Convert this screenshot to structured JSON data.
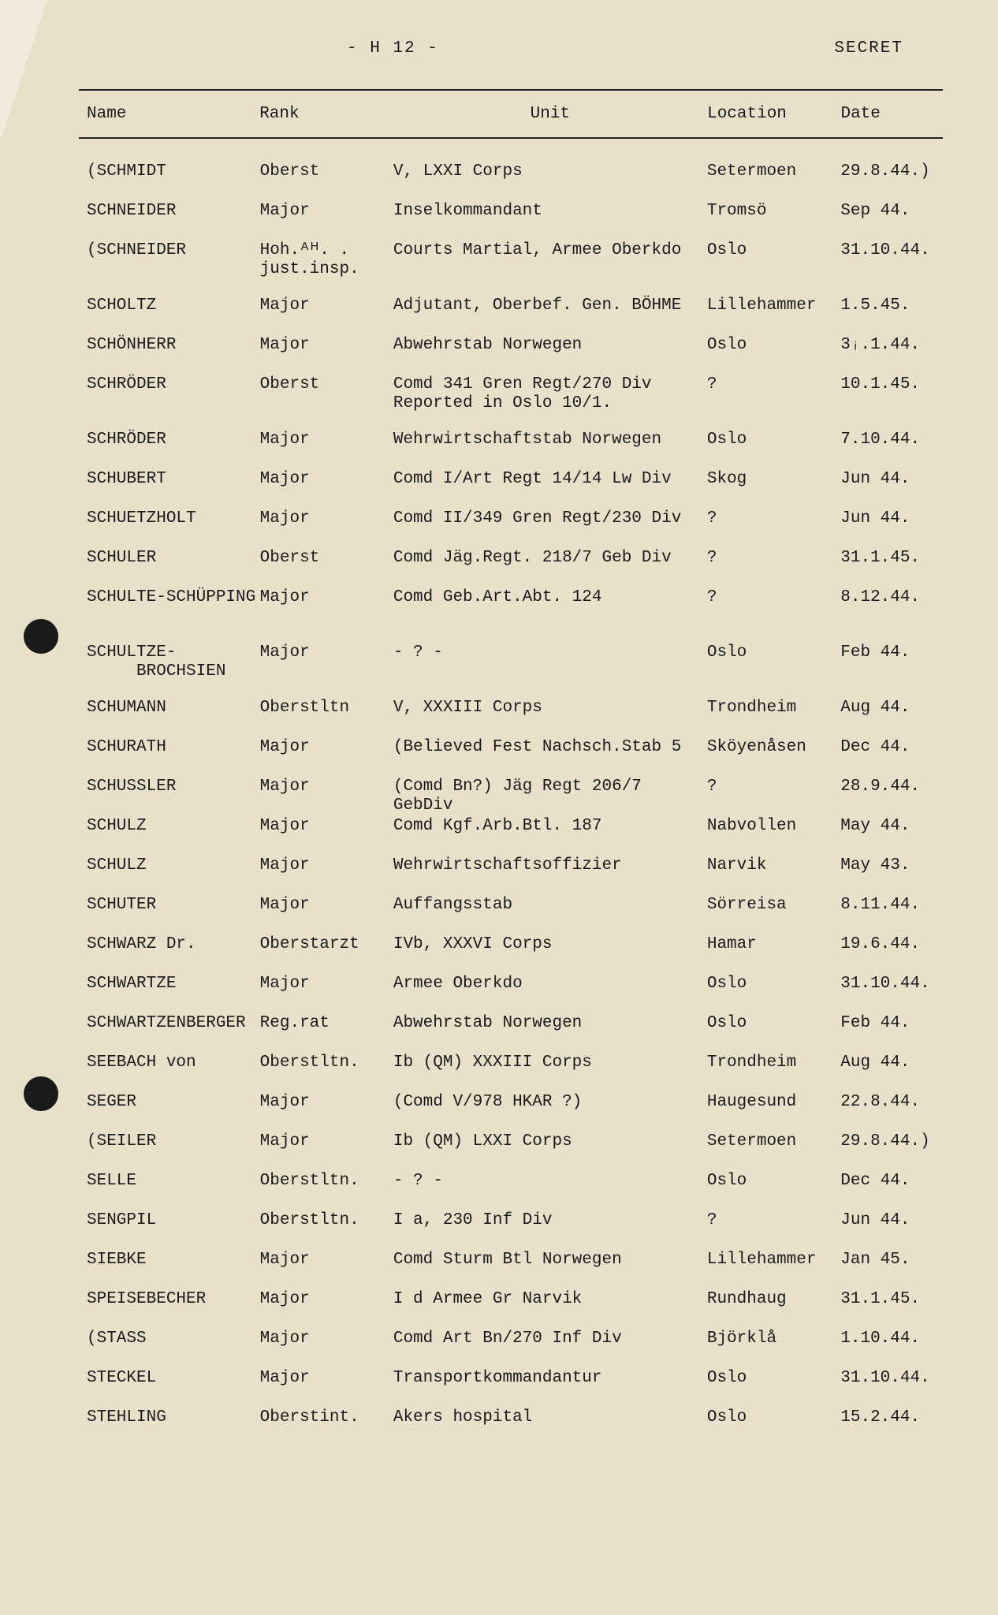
{
  "header": {
    "page_marker": "- H 12 -",
    "classification": "SECRET"
  },
  "columns": {
    "name": "Name",
    "rank": "Rank",
    "unit": "Unit",
    "location": "Location",
    "date": "Date"
  },
  "rows": [
    {
      "name": "(SCHMIDT",
      "rank": "Oberst",
      "unit": "V, LXXI Corps",
      "loc": "Setermoen",
      "date": "29.8.44.)"
    },
    {
      "name": "SCHNEIDER",
      "rank": "Major",
      "unit": "Inselkommandant",
      "loc": "Tromsö",
      "date": "Sep 44."
    },
    {
      "name": "(SCHNEIDER",
      "rank": "Hoh.ᴬᴴ. .",
      "rank2": "just.insp.",
      "unit": "Courts Martial, Armee Oberkdo",
      "loc": "Oslo",
      "date": "31.10.44."
    },
    {
      "name": "SCHOLTZ",
      "rank": "Major",
      "unit": "Adjutant, Oberbef. Gen. BÖHME",
      "loc": "Lillehammer",
      "date": "1.5.45."
    },
    {
      "name": "SCHÖNHERR",
      "rank": "Major",
      "unit": "Abwehrstab Norwegen",
      "loc": "Oslo",
      "date": "3ᵢ.1.44."
    },
    {
      "name": "SCHRÖDER",
      "rank": "Oberst",
      "unit": "Comd 341 Gren Regt/270 Div",
      "unit2": "Reported in Oslo 10/1.",
      "loc": "?",
      "date": "10.1.45."
    },
    {
      "name": "SCHRÖDER",
      "rank": "Major",
      "unit": "Wehrwirtschaftstab Norwegen",
      "loc": "Oslo",
      "date": "7.10.44."
    },
    {
      "name": "SCHUBERT",
      "rank": "Major",
      "unit": "Comd I/Art Regt 14/14 Lw Div",
      "loc": "Skog",
      "date": "Jun 44."
    },
    {
      "name": "SCHUETZHOLT",
      "rank": "Major",
      "unit": "Comd II/349 Gren Regt/230 Div",
      "loc": "?",
      "date": "Jun 44."
    },
    {
      "name": "SCHULER",
      "rank": "Oberst",
      "unit": "Comd Jäg.Regt. 218/7 Geb Div",
      "loc": "?",
      "date": "31.1.45."
    },
    {
      "name": "SCHULTE-SCHÜPPING",
      "name2": "",
      "rank": "",
      "rank_row2": "Major",
      "unit": "",
      "unit_row2": "Comd Geb.Art.Abt. 124",
      "loc": "",
      "loc_row2": "?",
      "date": "",
      "date_row2": "8.12.44.",
      "twoRow": true
    },
    {
      "name": "SCHULTZE-",
      "name2": "     BROCHSIEN",
      "rank": "Major",
      "unit": "- ? -",
      "loc": "Oslo",
      "date": "Feb 44."
    },
    {
      "name": "SCHUMANN",
      "rank": "Oberstltn",
      "unit": "V, XXXIII Corps",
      "loc": "Trondheim",
      "date": "Aug 44."
    },
    {
      "name": "SCHURATH",
      "rank": "Major",
      "unit": "(Believed Fest Nachsch.Stab 5",
      "loc": "Sköyenåsen",
      "date": "Dec 44."
    },
    {
      "name": "SCHUSSLER",
      "rank": "Major",
      "unit": "(Comd Bn?) Jäg Regt 206/7 GebDiv",
      "loc": "?",
      "date": "28.9.44."
    },
    {
      "name": "SCHULZ",
      "rank": "Major",
      "unit": "Comd Kgf.Arb.Btl. 187",
      "loc": "Nabvollen",
      "date": "May 44."
    },
    {
      "name": "SCHULZ",
      "rank": "Major",
      "unit": "Wehrwirtschaftsoffizier",
      "loc": "Narvik",
      "date": "May 43."
    },
    {
      "name": "SCHUTER",
      "rank": "Major",
      "unit": "Auffangsstab",
      "loc": "Sörreisa",
      "date": "8.11.44."
    },
    {
      "name": "SCHWARZ Dr.",
      "rank": "Oberstarzt",
      "unit": "IVb, XXXVI Corps",
      "loc": "Hamar",
      "date": "19.6.44."
    },
    {
      "name": "SCHWARTZE",
      "rank": "Major",
      "unit": "Armee Oberkdo",
      "loc": "Oslo",
      "date": "31.10.44."
    },
    {
      "name": "SCHWARTZENBERGER",
      "rank": "Reg.rat",
      "unit": "Abwehrstab Norwegen",
      "loc": "Oslo",
      "date": "Feb 44."
    },
    {
      "name": "SEEBACH von",
      "rank": "Oberstltn.",
      "unit": "Ib (QM) XXXIII Corps",
      "loc": "Trondheim",
      "date": "Aug 44."
    },
    {
      "name": "SEGER",
      "rank": "Major",
      "unit": "(Comd V/978 HKAR ?)",
      "loc": "Haugesund",
      "date": "22.8.44."
    },
    {
      "name": "(SEILER",
      "rank": "Major",
      "unit": "Ib (QM) LXXI Corps",
      "loc": "Setermoen",
      "date": "29.8.44.)"
    },
    {
      "name": "SELLE",
      "rank": "Oberstltn.",
      "unit": "- ? -",
      "loc": "Oslo",
      "date": "Dec 44."
    },
    {
      "name": "SENGPIL",
      "rank": "Oberstltn.",
      "unit": "I a, 230 Inf Div",
      "loc": "?",
      "date": "Jun 44."
    },
    {
      "name": "SIEBKE",
      "rank": "Major",
      "unit": "Comd Sturm Btl Norwegen",
      "loc": "Lillehammer",
      "date": "Jan 45."
    },
    {
      "name": "SPEISEBECHER",
      "rank": "Major",
      "unit": "I d Armee Gr Narvik",
      "loc": "Rundhaug",
      "date": "31.1.45."
    },
    {
      "name": "(STASS",
      "rank": "Major",
      "unit": "Comd Art Bn/270 Inf Div",
      "loc": "Björklå",
      "date": "1.10.44."
    },
    {
      "name": "STECKEL",
      "rank": "Major",
      "unit": "Transportkommandantur",
      "loc": "Oslo",
      "date": "31.10.44."
    },
    {
      "name": "STEHLING",
      "rank": "Oberstint.",
      "unit": "Akers hospital",
      "loc": "Oslo",
      "date": "15.2.44."
    }
  ]
}
